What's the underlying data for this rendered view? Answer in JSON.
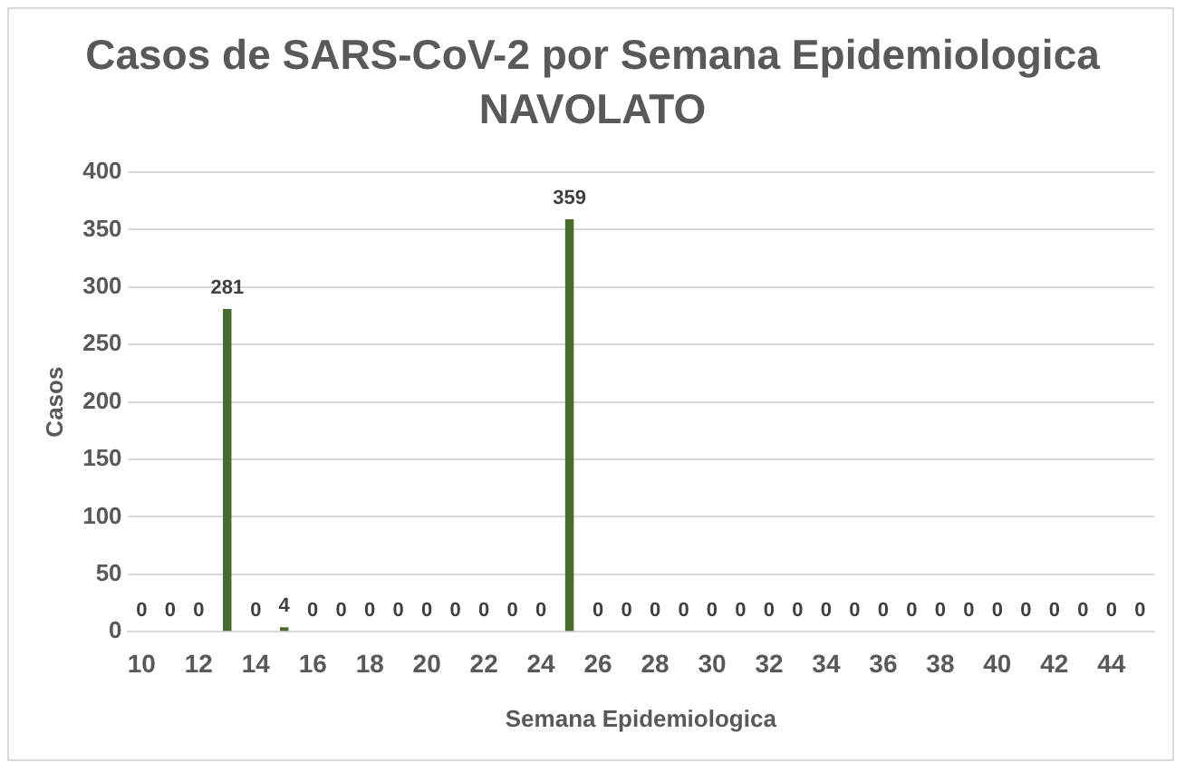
{
  "chart_data": {
    "type": "bar",
    "title": "Casos de SARS-CoV-2 por Semana Epidemiologica NAVOLATO",
    "xlabel": "Semana Epidemiologica",
    "ylabel": "Casos",
    "categories": [
      "10",
      null,
      "12",
      null,
      "14",
      null,
      "16",
      null,
      "18",
      null,
      "20",
      null,
      "22",
      null,
      "24",
      null,
      "26",
      null,
      "28",
      null,
      "30",
      null,
      "32",
      null,
      "34",
      null,
      "36",
      null,
      "38",
      null,
      "40",
      null,
      "42",
      null,
      "44",
      null
    ],
    "values": [
      0,
      0,
      0,
      281,
      0,
      4,
      0,
      0,
      0,
      0,
      0,
      0,
      0,
      0,
      0,
      359,
      0,
      0,
      0,
      0,
      0,
      0,
      0,
      0,
      0,
      0,
      0,
      0,
      0,
      0,
      0,
      0,
      0,
      0,
      0,
      0
    ],
    "color": "#4a6b2d",
    "ylim": [
      0,
      400
    ],
    "yticks": [
      0,
      50,
      100,
      150,
      200,
      250,
      300,
      350,
      400
    ],
    "grid": "y",
    "data_labels": true,
    "legend": false
  }
}
